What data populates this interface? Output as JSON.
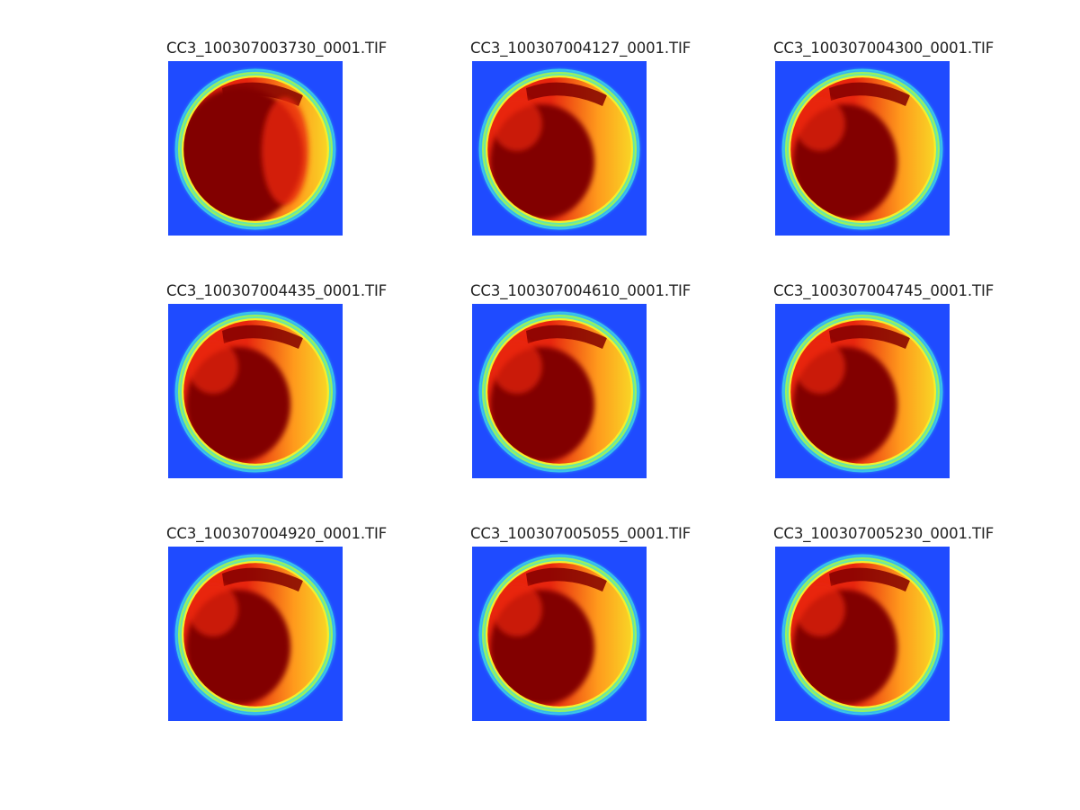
{
  "panels": [
    {
      "title": "CC3_100307003730_0001.TIF",
      "variant": "core-full"
    },
    {
      "title": "CC3_100307004127_0001.TIF",
      "variant": "core-medium"
    },
    {
      "title": "CC3_100307004300_0001.TIF",
      "variant": "core-medium"
    },
    {
      "title": "CC3_100307004435_0001.TIF",
      "variant": "core-medium"
    },
    {
      "title": "CC3_100307004610_0001.TIF",
      "variant": "core-medium"
    },
    {
      "title": "CC3_100307004745_0001.TIF",
      "variant": "core-medium"
    },
    {
      "title": "CC3_100307004920_0001.TIF",
      "variant": "core-medium"
    },
    {
      "title": "CC3_100307005055_0001.TIF",
      "variant": "core-medium"
    },
    {
      "title": "CC3_100307005230_0001.TIF",
      "variant": "core-medium"
    }
  ],
  "colormap": {
    "background": "#1f4bff",
    "cyan": "#3fe0e6",
    "green": "#9af25a",
    "yellow": "#f5ef2a",
    "orange": "#ff9a1c",
    "red": "#e8250e",
    "darkred": "#820000"
  }
}
